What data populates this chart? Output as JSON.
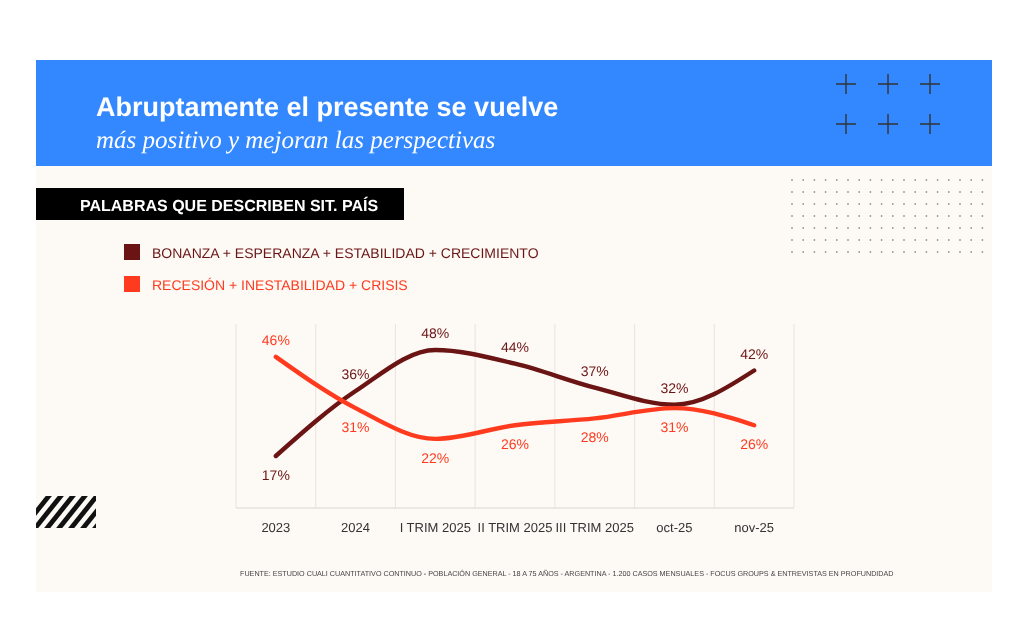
{
  "chart_data": {
    "type": "line",
    "title": "Abruptamente el presente se vuelve",
    "subtitle": "más positivo y mejoran las perspectivas",
    "annotations": [
      "PALABRAS QUE DESCRIBEN SIT. PAÍS",
      "FUENTE: ESTUDIO CUALI CUANTITATIVO CONTINUO - POBLACIÓN GENERAL - 18 A 75 AÑOS - ARGENTINA - 1.200 CASOS MENSUALES - FOCUS GROUPS & ENTREVISTAS EN PROFUNDIDAD"
    ],
    "categories": [
      "2023",
      "2024",
      "I TRIM 2025",
      "II TRIM 2025",
      "III TRIM 2025",
      "oct-25",
      "nov-25"
    ],
    "series": [
      {
        "name": "BONANZA + ESPERANZA + ESTABILIDAD + CRECIMIENTO",
        "color": "#6b1414",
        "values": [
          17,
          36,
          48,
          44,
          37,
          32,
          42
        ],
        "value_labels": [
          "17%",
          "36%",
          "48%",
          "44%",
          "37%",
          "32%",
          "42%"
        ]
      },
      {
        "name": "RECESIÓN + INESTABILIDAD + CRISIS",
        "color": "#ff3b1f",
        "values": [
          46,
          31,
          22,
          26,
          28,
          31,
          26
        ],
        "value_labels": [
          "46%",
          "31%",
          "22%",
          "26%",
          "28%",
          "31%",
          "26%"
        ]
      }
    ],
    "grid": "x",
    "legend": "top left",
    "marker": "none",
    "line_style": "solid"
  }
}
